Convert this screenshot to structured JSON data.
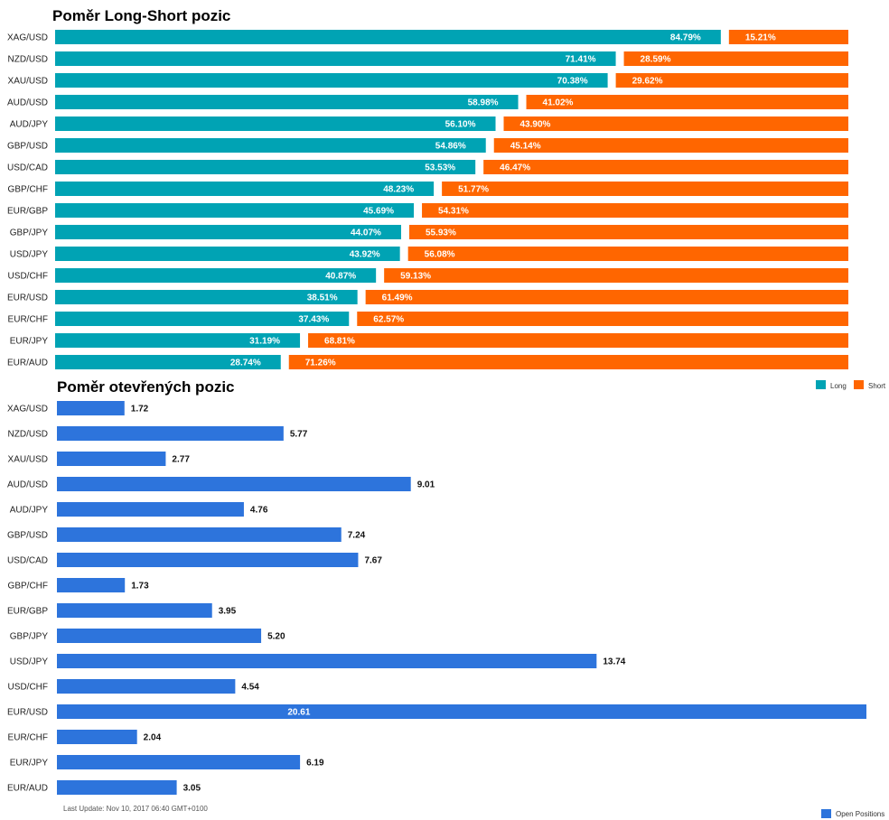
{
  "chart_data": [
    {
      "type": "bar",
      "title": "Poměr Long-Short pozic",
      "stacked": true,
      "orientation": "horizontal",
      "categories": [
        "XAG/USD",
        "NZD/USD",
        "XAU/USD",
        "AUD/USD",
        "AUD/JPY",
        "GBP/USD",
        "USD/CAD",
        "GBP/CHF",
        "EUR/GBP",
        "GBP/JPY",
        "USD/JPY",
        "USD/CHF",
        "EUR/USD",
        "EUR/CHF",
        "EUR/JPY",
        "EUR/AUD"
      ],
      "series": [
        {
          "name": "Long",
          "color": "#00a3b4",
          "values": [
            84.79,
            71.41,
            70.38,
            58.98,
            56.1,
            54.86,
            53.53,
            48.23,
            45.69,
            44.07,
            43.92,
            40.87,
            38.51,
            37.43,
            31.19,
            28.74
          ],
          "labels": [
            "84.79%",
            "71.41%",
            "70.38%",
            "58.98%",
            "56.10%",
            "54.86%",
            "53.53%",
            "48.23%",
            "45.69%",
            "44.07%",
            "43.92%",
            "40.87%",
            "38.51%",
            "37.43%",
            "31.19%",
            "28.74%"
          ]
        },
        {
          "name": "Short",
          "color": "#ff6600",
          "values": [
            15.21,
            28.59,
            29.62,
            41.02,
            43.9,
            45.14,
            46.47,
            51.77,
            54.31,
            55.93,
            56.08,
            59.13,
            61.49,
            62.57,
            68.81,
            71.26
          ],
          "labels": [
            "15.21%",
            "28.59%",
            "29.62%",
            "41.02%",
            "43.90%",
            "45.14%",
            "46.47%",
            "51.77%",
            "54.31%",
            "55.93%",
            "56.08%",
            "59.13%",
            "61.49%",
            "62.57%",
            "68.81%",
            "71.26%"
          ]
        }
      ],
      "xlim": [
        0,
        100
      ],
      "legend": "top-right",
      "grid": false
    },
    {
      "type": "bar",
      "title": "Poměr otevřených pozic",
      "orientation": "horizontal",
      "categories": [
        "XAG/USD",
        "NZD/USD",
        "XAU/USD",
        "AUD/USD",
        "AUD/JPY",
        "GBP/USD",
        "USD/CAD",
        "GBP/CHF",
        "EUR/GBP",
        "GBP/JPY",
        "USD/JPY",
        "USD/CHF",
        "EUR/USD",
        "EUR/CHF",
        "EUR/JPY",
        "EUR/AUD"
      ],
      "series": [
        {
          "name": "Open Positions",
          "color": "#2d74dc",
          "values": [
            1.72,
            5.77,
            2.77,
            9.01,
            4.76,
            7.24,
            7.67,
            1.73,
            3.95,
            5.2,
            13.74,
            4.54,
            20.61,
            2.04,
            6.19,
            3.05
          ],
          "labels": [
            "1.72",
            "5.77",
            "2.77",
            "9.01",
            "4.76",
            "7.24",
            "7.67",
            "1.73",
            "3.95",
            "5.20",
            "13.74",
            "4.54",
            "20.61",
            "2.04",
            "6.19",
            "3.05"
          ]
        }
      ],
      "legend": "bottom-right",
      "grid": false
    }
  ],
  "footer": {
    "last_update": "Last Update: Nov 10, 2017 06:40 GMT+0100"
  }
}
